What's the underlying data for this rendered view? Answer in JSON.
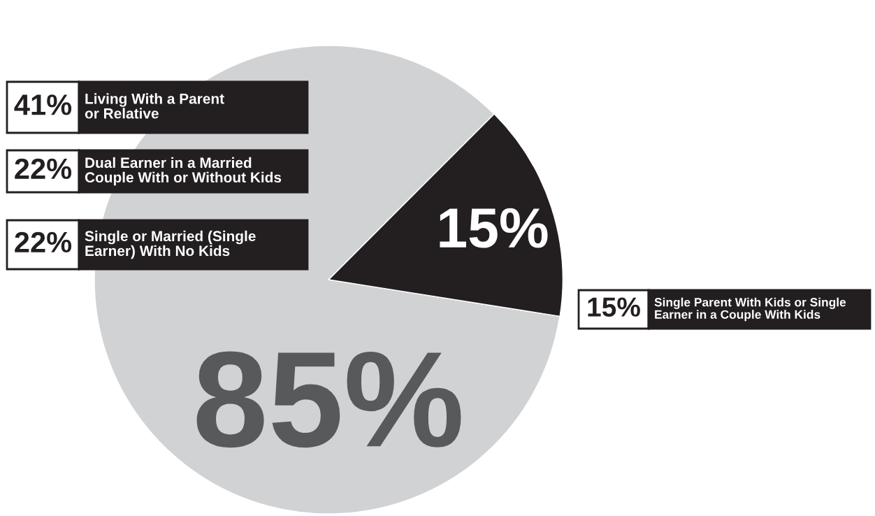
{
  "chart_data": {
    "type": "pie",
    "categories": [
      null,
      null
    ],
    "values": [
      85,
      15
    ],
    "colors": [
      "#d1d2d4",
      "#231f20"
    ],
    "value_labels": [
      "85%",
      "15%"
    ],
    "annotations": [
      "41% Living With a Parent\nor Relative",
      "22% Dual Earner in a Married\nCouple With or Without Kids",
      "22% Single or Married (Single\nEarner) With No Kids",
      "15% Single Parent With Kids or Single\nEarner in a Couple With Kids"
    ]
  }
}
